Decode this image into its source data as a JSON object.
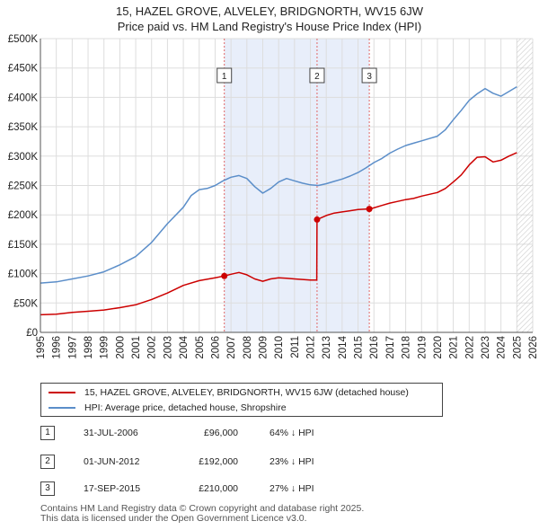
{
  "title": {
    "line1": "15, HAZEL GROVE, ALVELEY, BRIDGNORTH, WV15 6JW",
    "line2": "Price paid vs. HM Land Registry's House Price Index (HPI)"
  },
  "colors": {
    "price_line": "#cc0000",
    "hpi_line": "#5b8ec9",
    "shade": "#e8eefa",
    "grid": "#dddddd",
    "vline": "#e06666",
    "future_hatch": "#cccccc"
  },
  "chart_data": {
    "type": "line",
    "title": "15, HAZEL GROVE, ALVELEY, BRIDGNORTH, WV15 6JW — Price paid vs. HM Land Registry's House Price Index (HPI)",
    "xlabel": "",
    "ylabel": "",
    "xlim": [
      1995,
      2026
    ],
    "ylim": [
      0,
      500000
    ],
    "x_ticks": [
      "1995",
      "1996",
      "1997",
      "1998",
      "1999",
      "2000",
      "2001",
      "2002",
      "2003",
      "2004",
      "2005",
      "2006",
      "2007",
      "2008",
      "2009",
      "2010",
      "2011",
      "2012",
      "2013",
      "2014",
      "2015",
      "2016",
      "2017",
      "2018",
      "2019",
      "2020",
      "2021",
      "2022",
      "2023",
      "2024",
      "2025",
      "2026"
    ],
    "y_ticks": [
      {
        "value": 0,
        "label": "£0"
      },
      {
        "value": 50000,
        "label": "£50K"
      },
      {
        "value": 100000,
        "label": "£100K"
      },
      {
        "value": 150000,
        "label": "£150K"
      },
      {
        "value": 200000,
        "label": "£200K"
      },
      {
        "value": 250000,
        "label": "£250K"
      },
      {
        "value": 300000,
        "label": "£300K"
      },
      {
        "value": 350000,
        "label": "£350K"
      },
      {
        "value": 400000,
        "label": "£400K"
      },
      {
        "value": 450000,
        "label": "£450K"
      },
      {
        "value": 500000,
        "label": "£500K"
      }
    ],
    "grid": true,
    "shaded_ranges": [
      [
        2006.58,
        2012.42
      ],
      [
        2012.42,
        2015.71
      ]
    ],
    "future_from": 2025.0,
    "series": [
      {
        "name": "15, HAZEL GROVE, ALVELEY, BRIDGNORTH, WV15 6JW (detached house)",
        "x": [
          1995.0,
          1996.0,
          1997.0,
          1998.0,
          1999.0,
          2000.0,
          2001.0,
          2002.0,
          2003.0,
          2004.0,
          2005.0,
          2006.0,
          2006.58,
          2007.0,
          2007.5,
          2008.0,
          2008.5,
          2009.0,
          2009.5,
          2010.0,
          2010.5,
          2011.0,
          2011.5,
          2012.0,
          2012.4,
          2012.42,
          2013.0,
          2013.5,
          2014.0,
          2014.5,
          2015.0,
          2015.5,
          2015.71,
          2016.0,
          2016.5,
          2017.0,
          2017.5,
          2018.0,
          2018.5,
          2019.0,
          2019.5,
          2020.0,
          2020.5,
          2021.0,
          2021.5,
          2022.0,
          2022.5,
          2023.0,
          2023.5,
          2024.0,
          2024.5,
          2025.0
        ],
        "values": [
          30000,
          31000,
          34000,
          36000,
          38000,
          42000,
          47000,
          56000,
          67000,
          80000,
          88000,
          93000,
          96000,
          99000,
          102000,
          98000,
          91000,
          87000,
          91000,
          93000,
          92000,
          91000,
          90000,
          89000,
          89000,
          192000,
          199000,
          203000,
          205000,
          207000,
          209000,
          210000,
          210000,
          212000,
          216000,
          220000,
          223000,
          226000,
          228000,
          232000,
          235000,
          238000,
          245000,
          256000,
          268000,
          285000,
          298000,
          299000,
          290000,
          293000,
          300000,
          306000
        ]
      },
      {
        "name": "HPI: Average price, detached house, Shropshire",
        "x": [
          1995.0,
          1996.0,
          1997.0,
          1998.0,
          1999.0,
          2000.0,
          2001.0,
          2002.0,
          2003.0,
          2004.0,
          2004.5,
          2005.0,
          2005.5,
          2006.0,
          2006.5,
          2007.0,
          2007.5,
          2008.0,
          2008.5,
          2009.0,
          2009.5,
          2010.0,
          2010.5,
          2011.0,
          2011.5,
          2012.0,
          2012.5,
          2013.0,
          2013.5,
          2014.0,
          2014.5,
          2015.0,
          2015.5,
          2016.0,
          2016.5,
          2017.0,
          2017.5,
          2018.0,
          2018.5,
          2019.0,
          2019.5,
          2020.0,
          2020.5,
          2021.0,
          2021.5,
          2022.0,
          2022.5,
          2023.0,
          2023.5,
          2024.0,
          2024.5,
          2025.0
        ],
        "values": [
          84000,
          86000,
          91000,
          96000,
          103000,
          115000,
          129000,
          153000,
          185000,
          213000,
          233000,
          243000,
          245000,
          250000,
          258000,
          264000,
          267000,
          262000,
          248000,
          237000,
          245000,
          256000,
          262000,
          258000,
          254000,
          251000,
          250000,
          253000,
          257000,
          261000,
          266000,
          272000,
          280000,
          289000,
          296000,
          305000,
          312000,
          318000,
          322000,
          326000,
          330000,
          334000,
          345000,
          362000,
          378000,
          395000,
          406000,
          415000,
          407000,
          402000,
          410000,
          418000
        ]
      }
    ],
    "annotations": [
      {
        "label": "1",
        "x": 2006.58,
        "value": 96000
      },
      {
        "label": "2",
        "x": 2012.42,
        "value": 192000
      },
      {
        "label": "3",
        "x": 2015.71,
        "value": 210000
      }
    ]
  },
  "legend": {
    "price_label": "15, HAZEL GROVE, ALVELEY, BRIDGNORTH, WV15 6JW (detached house)",
    "hpi_label": "HPI: Average price, detached house, Shropshire"
  },
  "sales": [
    {
      "num": "1",
      "date": "31-JUL-2006",
      "price": "£96,000",
      "hpi": "64% ↓ HPI"
    },
    {
      "num": "2",
      "date": "01-JUN-2012",
      "price": "£192,000",
      "hpi": "23% ↓ HPI"
    },
    {
      "num": "3",
      "date": "17-SEP-2015",
      "price": "£210,000",
      "hpi": "27% ↓ HPI"
    }
  ],
  "footer": {
    "line1": "Contains HM Land Registry data © Crown copyright and database right 2025.",
    "line2": "This data is licensed under the Open Government Licence v3.0."
  }
}
